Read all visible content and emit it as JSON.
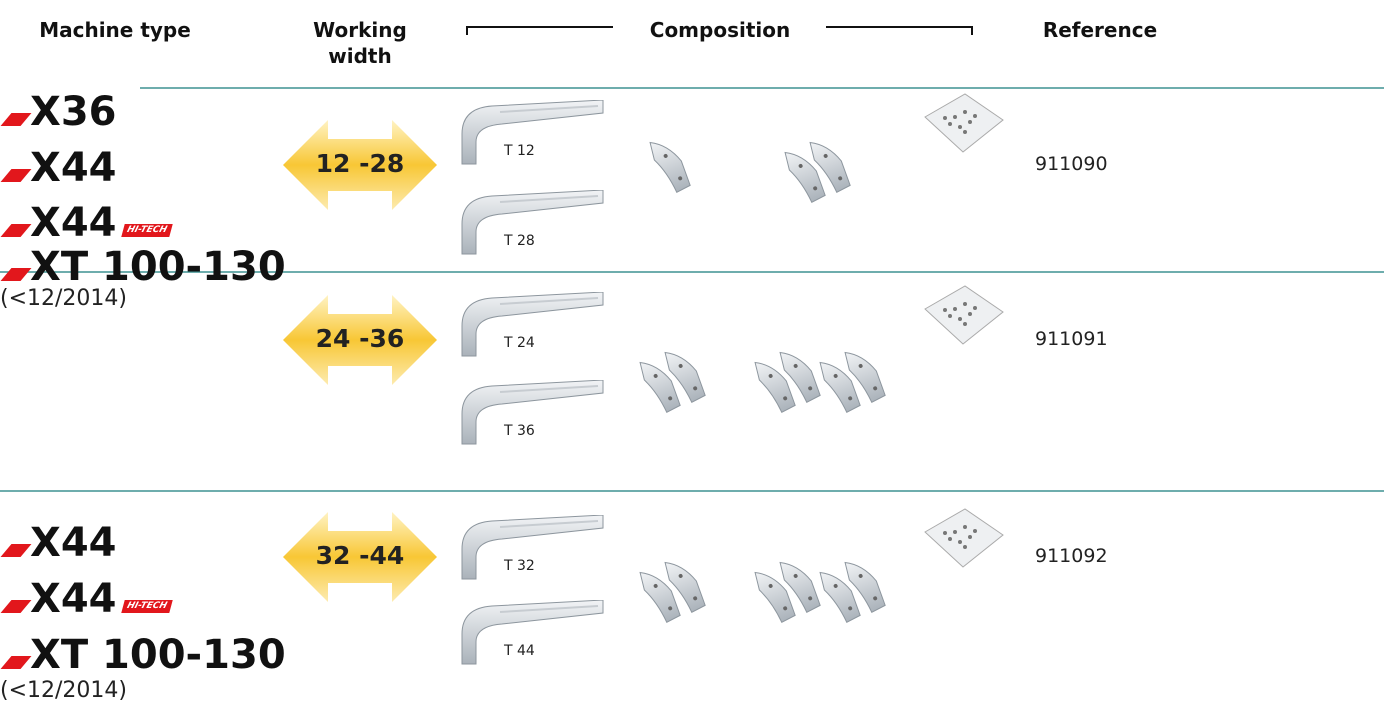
{
  "header": {
    "machine_type": "Machine type",
    "working_width": "Working width",
    "composition": "Composition",
    "reference": "Reference"
  },
  "groups": [
    {
      "machines": [
        {
          "name": "X36"
        },
        {
          "name": "X44"
        },
        {
          "name": "X44",
          "badge": "HI-TECH"
        },
        {
          "name": "XT 100-130"
        }
      ],
      "note": "(<12/2014)"
    },
    {
      "machines": [
        {
          "name": "X44"
        },
        {
          "name": "X44",
          "badge": "HI-TECH"
        },
        {
          "name": "XT 100-130"
        }
      ],
      "note": "(<12/2014)"
    }
  ],
  "rows": [
    {
      "working_width": "12 -28",
      "tools": [
        "T 12",
        "T 28"
      ],
      "reference": "911090"
    },
    {
      "working_width": "24 -36",
      "tools": [
        "T 24",
        "T 36"
      ],
      "reference": "911091"
    },
    {
      "working_width": "32 -44",
      "tools": [
        "T 32",
        "T 44"
      ],
      "reference": "911092"
    }
  ]
}
